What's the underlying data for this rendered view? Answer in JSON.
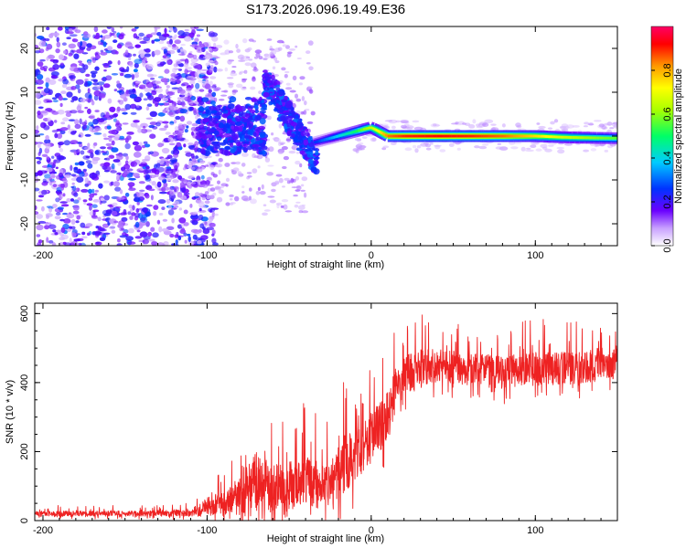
{
  "title": "S173.2026.096.19.49.E36",
  "chart_data": [
    {
      "type": "heatmap",
      "name": "spectrogram",
      "xlabel": "Height of straight line (km)",
      "ylabel": "Frequency (Hz)",
      "xlim": [
        -205,
        150
      ],
      "ylim": [
        -25,
        25
      ],
      "xticks": [
        -200,
        -100,
        0,
        100
      ],
      "yticks": [
        -20,
        -10,
        0,
        10,
        20
      ],
      "colorbar": {
        "label": "Normalized spectral amplitude",
        "range": [
          0.0,
          1.0
        ],
        "ticks": [
          0.0,
          0.2,
          0.4,
          0.6,
          0.8
        ],
        "tick_labels": [
          "0.0",
          "0.2",
          "0.4",
          "0.6",
          "0.8"
        ]
      },
      "ridge": {
        "x": [
          -35,
          -30,
          -25,
          -20,
          -15,
          -10,
          -5,
          0,
          5,
          10,
          20,
          40,
          60,
          80,
          100,
          120,
          150
        ],
        "freq": [
          -1.5,
          -1.0,
          -0.5,
          0.0,
          0.5,
          1.0,
          1.5,
          2.0,
          1.0,
          0.0,
          0.0,
          0.0,
          0.0,
          0.0,
          0.0,
          -0.3,
          -0.5
        ],
        "amplitude": [
          0.25,
          0.3,
          0.35,
          0.4,
          0.45,
          0.5,
          0.6,
          0.65,
          0.75,
          0.85,
          0.9,
          0.92,
          0.9,
          0.85,
          0.75,
          0.65,
          0.55
        ]
      }
    },
    {
      "type": "line",
      "name": "snr",
      "xlabel": "Height of straight line (km)",
      "ylabel": "SNR (10 * v/v)",
      "xlim": [
        -205,
        150
      ],
      "ylim": [
        0,
        630
      ],
      "xticks": [
        -200,
        -100,
        0,
        100
      ],
      "yticks": [
        0,
        200,
        400,
        600
      ],
      "color": "#ee2222",
      "envelope": {
        "x": [
          -205,
          -150,
          -110,
          -100,
          -90,
          -80,
          -70,
          -60,
          -50,
          -40,
          -30,
          -25,
          -20,
          -15,
          -10,
          -5,
          0,
          5,
          10,
          15,
          20,
          30,
          40,
          60,
          80,
          100,
          120,
          150
        ],
        "mean": [
          20,
          20,
          22,
          40,
          50,
          70,
          110,
          90,
          100,
          110,
          100,
          110,
          140,
          170,
          200,
          210,
          240,
          270,
          310,
          380,
          420,
          440,
          450,
          440,
          430,
          440,
          440,
          460
        ],
        "spread": [
          10,
          10,
          12,
          35,
          45,
          70,
          110,
          90,
          90,
          100,
          80,
          80,
          100,
          110,
          100,
          90,
          90,
          90,
          90,
          80,
          70,
          70,
          60,
          60,
          60,
          60,
          60,
          60
        ]
      }
    }
  ]
}
